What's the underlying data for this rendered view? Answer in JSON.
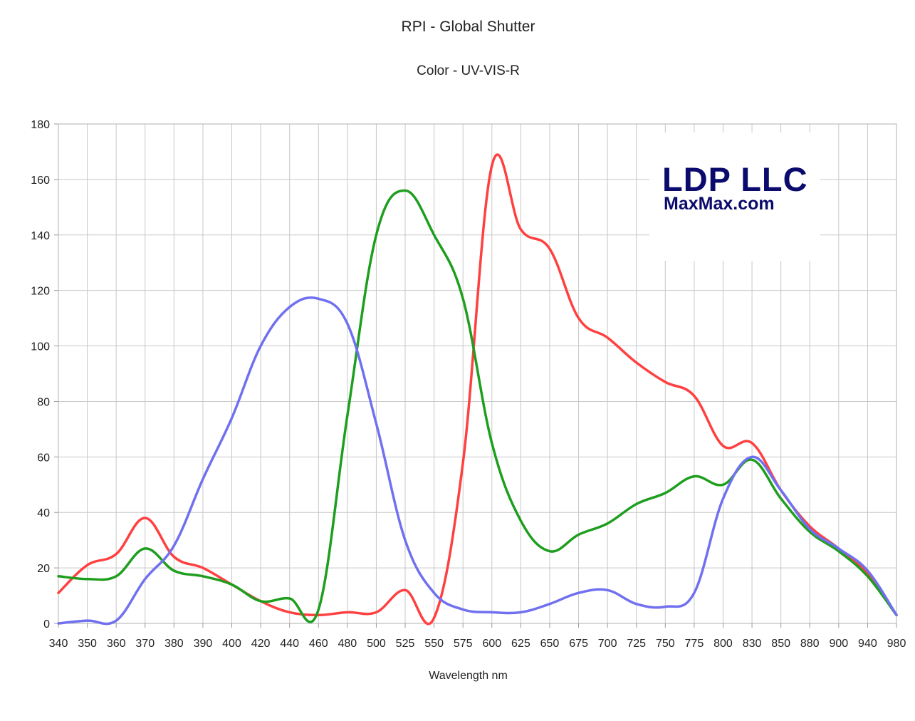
{
  "chart_data": {
    "type": "line",
    "title": "RPI - Global Shutter",
    "subtitle": "Color  - UV-VIS-R",
    "xlabel": "Wavelength nm",
    "ylabel": "",
    "ylim": [
      0,
      180
    ],
    "y_ticks": [
      0,
      20,
      40,
      60,
      80,
      100,
      120,
      140,
      160,
      180
    ],
    "categories": [
      "340",
      "350",
      "360",
      "370",
      "380",
      "390",
      "400",
      "420",
      "440",
      "460",
      "480",
      "500",
      "525",
      "550",
      "575",
      "600",
      "625",
      "650",
      "675",
      "700",
      "725",
      "750",
      "775",
      "800",
      "830",
      "850",
      "880",
      "900",
      "940",
      "980"
    ],
    "grid": true,
    "legend": "none",
    "series": [
      {
        "color": "#ff4040",
        "values": [
          11,
          21,
          25,
          38,
          24,
          20,
          14,
          8,
          4,
          3,
          4,
          4,
          12,
          2,
          58,
          165,
          142,
          135,
          110,
          103,
          94,
          87,
          82,
          64,
          65,
          48,
          35,
          27,
          18,
          3
        ]
      },
      {
        "color": "#1e9e1e",
        "values": [
          17,
          16,
          17,
          27,
          19,
          17,
          14,
          8,
          9,
          5,
          75,
          140,
          156,
          140,
          117,
          65,
          37,
          26,
          32,
          36,
          43,
          47,
          53,
          50,
          59,
          45,
          33,
          26,
          17,
          3
        ]
      },
      {
        "color": "#7070f0",
        "values": [
          0,
          1,
          1,
          16,
          28,
          52,
          74,
          100,
          114,
          117,
          108,
          72,
          30,
          11,
          5,
          4,
          4,
          7,
          11,
          12,
          7,
          6,
          11,
          45,
          60,
          48,
          34,
          27,
          19,
          3
        ]
      }
    ]
  },
  "watermark": {
    "line1": "LDP LLC",
    "line2": "MaxMax.com",
    "color": "#0b0b6e"
  }
}
